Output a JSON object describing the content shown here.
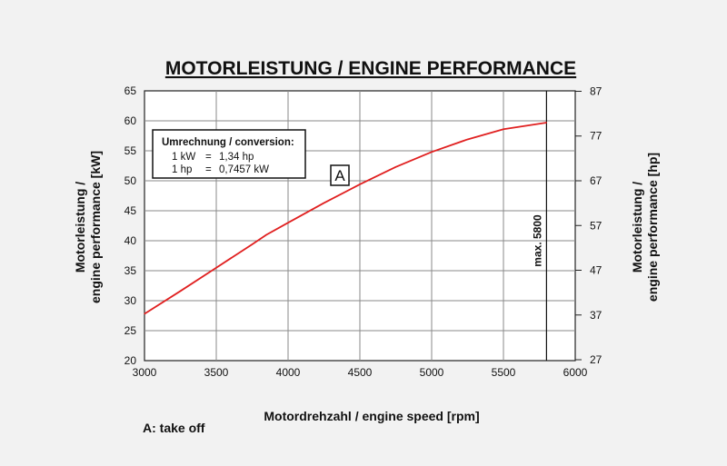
{
  "chart_data": {
    "type": "line",
    "title": "MOTORLEISTUNG / ENGINE PERFORMANCE",
    "xlabel": "Motordrehzahl / engine speed [rpm]",
    "ylabel_left": [
      "Motorleistung /",
      "engine performance [kW]"
    ],
    "ylabel_right": [
      "Motorleistung /",
      "engine performance [hp]"
    ],
    "xlim": [
      3000,
      6000
    ],
    "ylim": [
      20,
      65
    ],
    "x_ticks": [
      3000,
      3500,
      4000,
      4500,
      5000,
      5500,
      6000
    ],
    "y_ticks_left": [
      20,
      25,
      30,
      35,
      40,
      45,
      50,
      55,
      60,
      65
    ],
    "y_ticks_right": [
      27,
      37,
      47,
      57,
      67,
      77,
      87
    ],
    "grid": true,
    "series": [
      {
        "name": "A",
        "color": "#e02020",
        "x": [
          3000,
          3250,
          3500,
          3750,
          3850,
          4000,
          4250,
          4500,
          4750,
          5000,
          5250,
          5500,
          5800
        ],
        "y": [
          27.8,
          31.6,
          35.5,
          39.4,
          41.0,
          43.0,
          46.3,
          49.4,
          52.3,
          54.8,
          56.9,
          58.6,
          59.7
        ]
      }
    ],
    "annotations": {
      "series_label": "A",
      "max_label": "max. 5800",
      "max_rpm": 5800,
      "conversion_title": "Umrechnung / conversion:",
      "conversion_lines": [
        [
          "1 kW",
          "=",
          "1,34 hp"
        ],
        [
          "1 hp",
          "=",
          "0,7457 kW"
        ]
      ]
    },
    "footnote": "A: take off"
  }
}
